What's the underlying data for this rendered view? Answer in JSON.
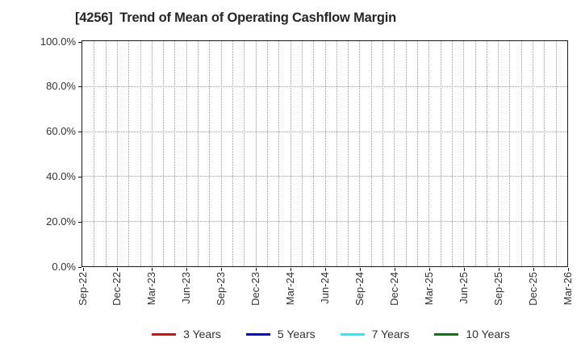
{
  "chart_data": {
    "type": "line",
    "title": "[4256]  Trend of Mean of Operating Cashflow Margin",
    "xlabel": "",
    "ylabel": "",
    "x_tick_labels": [
      "Sep-22",
      "Dec-22",
      "Mar-23",
      "Jun-23",
      "Sep-23",
      "Dec-23",
      "Mar-24",
      "Jun-24",
      "Sep-24",
      "Dec-24",
      "Mar-25",
      "Jun-25",
      "Sep-25",
      "Dec-25",
      "Mar-26"
    ],
    "x_minor_per_label": 3,
    "y_tick_labels": [
      "0.0%",
      "20.0%",
      "40.0%",
      "60.0%",
      "80.0%",
      "100.0%"
    ],
    "y_tick_step": 20,
    "ylim": [
      0,
      100
    ],
    "grid": true,
    "grid_style": "dotted",
    "legend_position": "bottom-center",
    "series": [
      {
        "name": "3 Years",
        "color": "#ff0000",
        "values": []
      },
      {
        "name": "5 Years",
        "color": "#0000ff",
        "values": []
      },
      {
        "name": "7 Years",
        "color": "#00ffff",
        "values": []
      },
      {
        "name": "10 Years",
        "color": "#008000",
        "values": []
      }
    ]
  },
  "colors": {
    "background": "#ffffff",
    "axis_border": "#1a1a1a",
    "gridline": "#9e9e9e",
    "text": "#333333",
    "title_text": "#262626"
  }
}
